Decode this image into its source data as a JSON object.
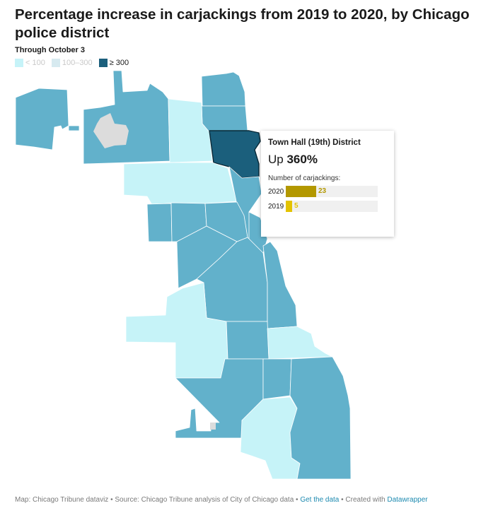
{
  "title": "Percentage increase in carjackings from 2019 to 2020, by Chicago police district",
  "subtitle": "Through October 3",
  "colors": {
    "low": "#c6f3f8",
    "mid": "#62b1cb",
    "high": "#1b5f7c",
    "background": "#ffffff",
    "no_data": "#dcdcdc",
    "bar_2020": "#b39800",
    "bar_2019": "#e3c300"
  },
  "legend": [
    {
      "label": "< 100",
      "color": "#c6f3f8",
      "state": "faded"
    },
    {
      "label": "100–300",
      "color": "#d7eaf0",
      "state": "faded"
    },
    {
      "label": "≥ 300",
      "color": "#1b5f7c",
      "state": "active"
    }
  ],
  "tooltip": {
    "district": "Town Hall (19th) District",
    "change_prefix": "Up",
    "change_value": "360%",
    "bars_label": "Number of carjackings:",
    "bar_max": 70,
    "rows": [
      {
        "year": "2020",
        "value": 23,
        "value_text": "23"
      },
      {
        "year": "2019",
        "value": 5,
        "value_text": "5"
      }
    ]
  },
  "footer": {
    "credit": "Map: Chicago Tribune dataviz • Source: Chicago Tribune analysis of City of Chicago data • ",
    "get_data": "Get the data",
    "created_with": " • Created with ",
    "tool": "Datawrapper"
  }
}
